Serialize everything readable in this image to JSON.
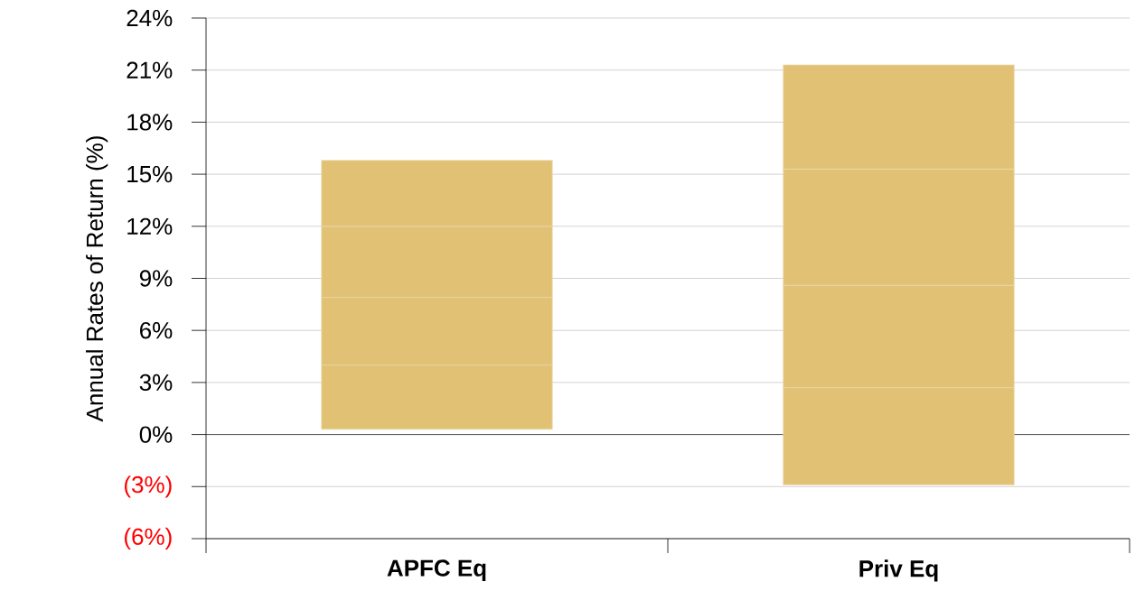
{
  "chart_data": {
    "type": "bar",
    "ylabel": "Annual Rates of Return (%)",
    "categories": [
      "APFC Eq",
      "Priv Eq"
    ],
    "series": [
      {
        "color": "#e1c275",
        "base": [
          0.3,
          -2.9
        ],
        "values": [
          3.7,
          5.6
        ]
      },
      {
        "color": "#e1c275",
        "base": [
          4.0,
          2.7
        ],
        "values": [
          3.9,
          5.9
        ]
      },
      {
        "color": "#e1c275",
        "base": [
          7.9,
          8.6
        ],
        "values": [
          4.1,
          6.7
        ]
      },
      {
        "color": "#e1c275",
        "base": [
          12.0,
          15.3
        ],
        "values": [
          3.8,
          6.0
        ]
      }
    ],
    "ylim": [
      -6,
      24
    ],
    "yticks": [
      {
        "value": -6,
        "label": "(6%)"
      },
      {
        "value": -3,
        "label": "(3%)"
      },
      {
        "value": 0,
        "label": "0%"
      },
      {
        "value": 3,
        "label": "3%"
      },
      {
        "value": 6,
        "label": "6%"
      },
      {
        "value": 9,
        "label": "9%"
      },
      {
        "value": 12,
        "label": "12%"
      },
      {
        "value": 15,
        "label": "15%"
      },
      {
        "value": 18,
        "label": "18%"
      },
      {
        "value": 21,
        "label": "21%"
      },
      {
        "value": 24,
        "label": "24%"
      }
    ],
    "grid": "y"
  }
}
